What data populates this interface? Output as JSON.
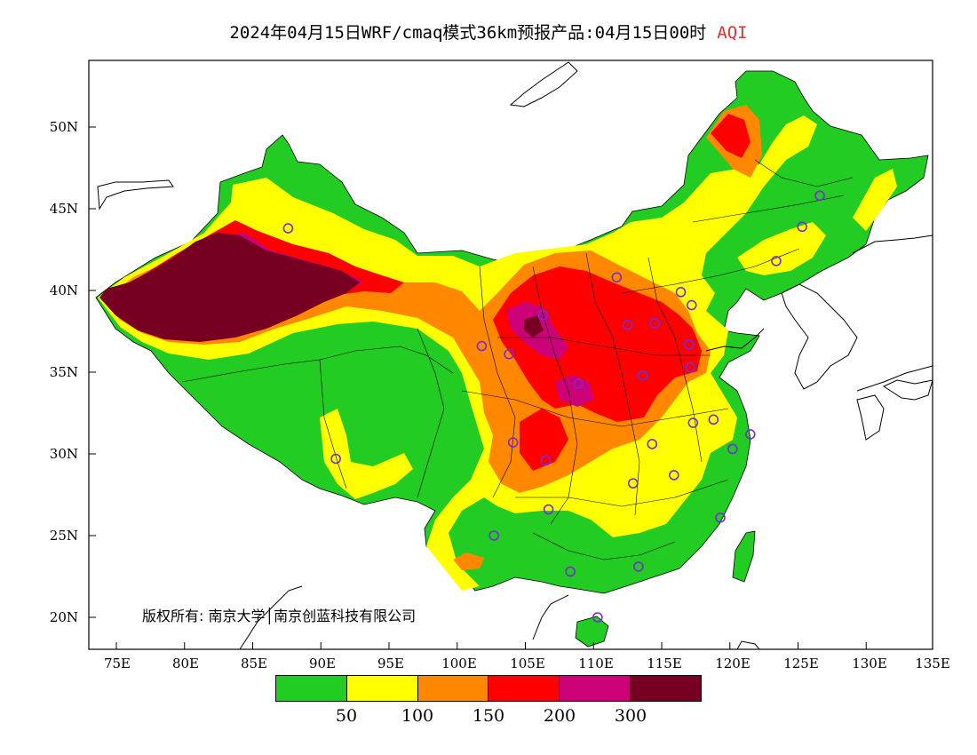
{
  "title": {
    "main": "2024年04月15日WRF/cmaq模式36km预报产品:04月15日00时",
    "variable": "AQI"
  },
  "axes": {
    "lat_labels": [
      "50N",
      "45N",
      "40N",
      "35N",
      "30N",
      "25N",
      "20N"
    ],
    "lon_labels": [
      "75E",
      "80E",
      "85E",
      "90E",
      "95E",
      "100E",
      "105E",
      "110E",
      "115E",
      "120E",
      "125E",
      "130E",
      "135E"
    ]
  },
  "copyright": "版权所有: 南京大学│南京创蓝科技有限公司",
  "legend": {
    "colors": [
      "#22cc22",
      "#ffff00",
      "#ff8800",
      "#ff0000",
      "#cc0077",
      "#770022"
    ],
    "thresholds": [
      "50",
      "100",
      "150",
      "200",
      "300"
    ]
  },
  "stations": [
    {
      "lon": 87.6,
      "lat": 43.8
    },
    {
      "lon": 91.1,
      "lat": 29.7
    },
    {
      "lon": 101.8,
      "lat": 36.6
    },
    {
      "lon": 103.8,
      "lat": 36.1
    },
    {
      "lon": 106.3,
      "lat": 38.5
    },
    {
      "lon": 111.7,
      "lat": 40.8
    },
    {
      "lon": 112.5,
      "lat": 37.9
    },
    {
      "lon": 114.5,
      "lat": 38.0
    },
    {
      "lon": 116.4,
      "lat": 39.9
    },
    {
      "lon": 117.2,
      "lat": 39.1
    },
    {
      "lon": 117.0,
      "lat": 36.7
    },
    {
      "lon": 113.6,
      "lat": 34.8
    },
    {
      "lon": 108.9,
      "lat": 34.3
    },
    {
      "lon": 104.1,
      "lat": 30.7
    },
    {
      "lon": 106.5,
      "lat": 29.6
    },
    {
      "lon": 106.7,
      "lat": 26.6
    },
    {
      "lon": 102.7,
      "lat": 25.0
    },
    {
      "lon": 108.3,
      "lat": 22.8
    },
    {
      "lon": 113.3,
      "lat": 23.1
    },
    {
      "lon": 110.3,
      "lat": 20.0
    },
    {
      "lon": 112.9,
      "lat": 28.2
    },
    {
      "lon": 114.3,
      "lat": 30.6
    },
    {
      "lon": 115.9,
      "lat": 28.7
    },
    {
      "lon": 117.3,
      "lat": 31.9
    },
    {
      "lon": 118.8,
      "lat": 32.1
    },
    {
      "lon": 120.2,
      "lat": 30.3
    },
    {
      "lon": 121.5,
      "lat": 31.2
    },
    {
      "lon": 119.3,
      "lat": 26.1
    },
    {
      "lon": 123.4,
      "lat": 41.8
    },
    {
      "lon": 125.3,
      "lat": 43.9
    },
    {
      "lon": 126.6,
      "lat": 45.8
    },
    {
      "lon": 117.1,
      "lat": 35.3
    }
  ]
}
